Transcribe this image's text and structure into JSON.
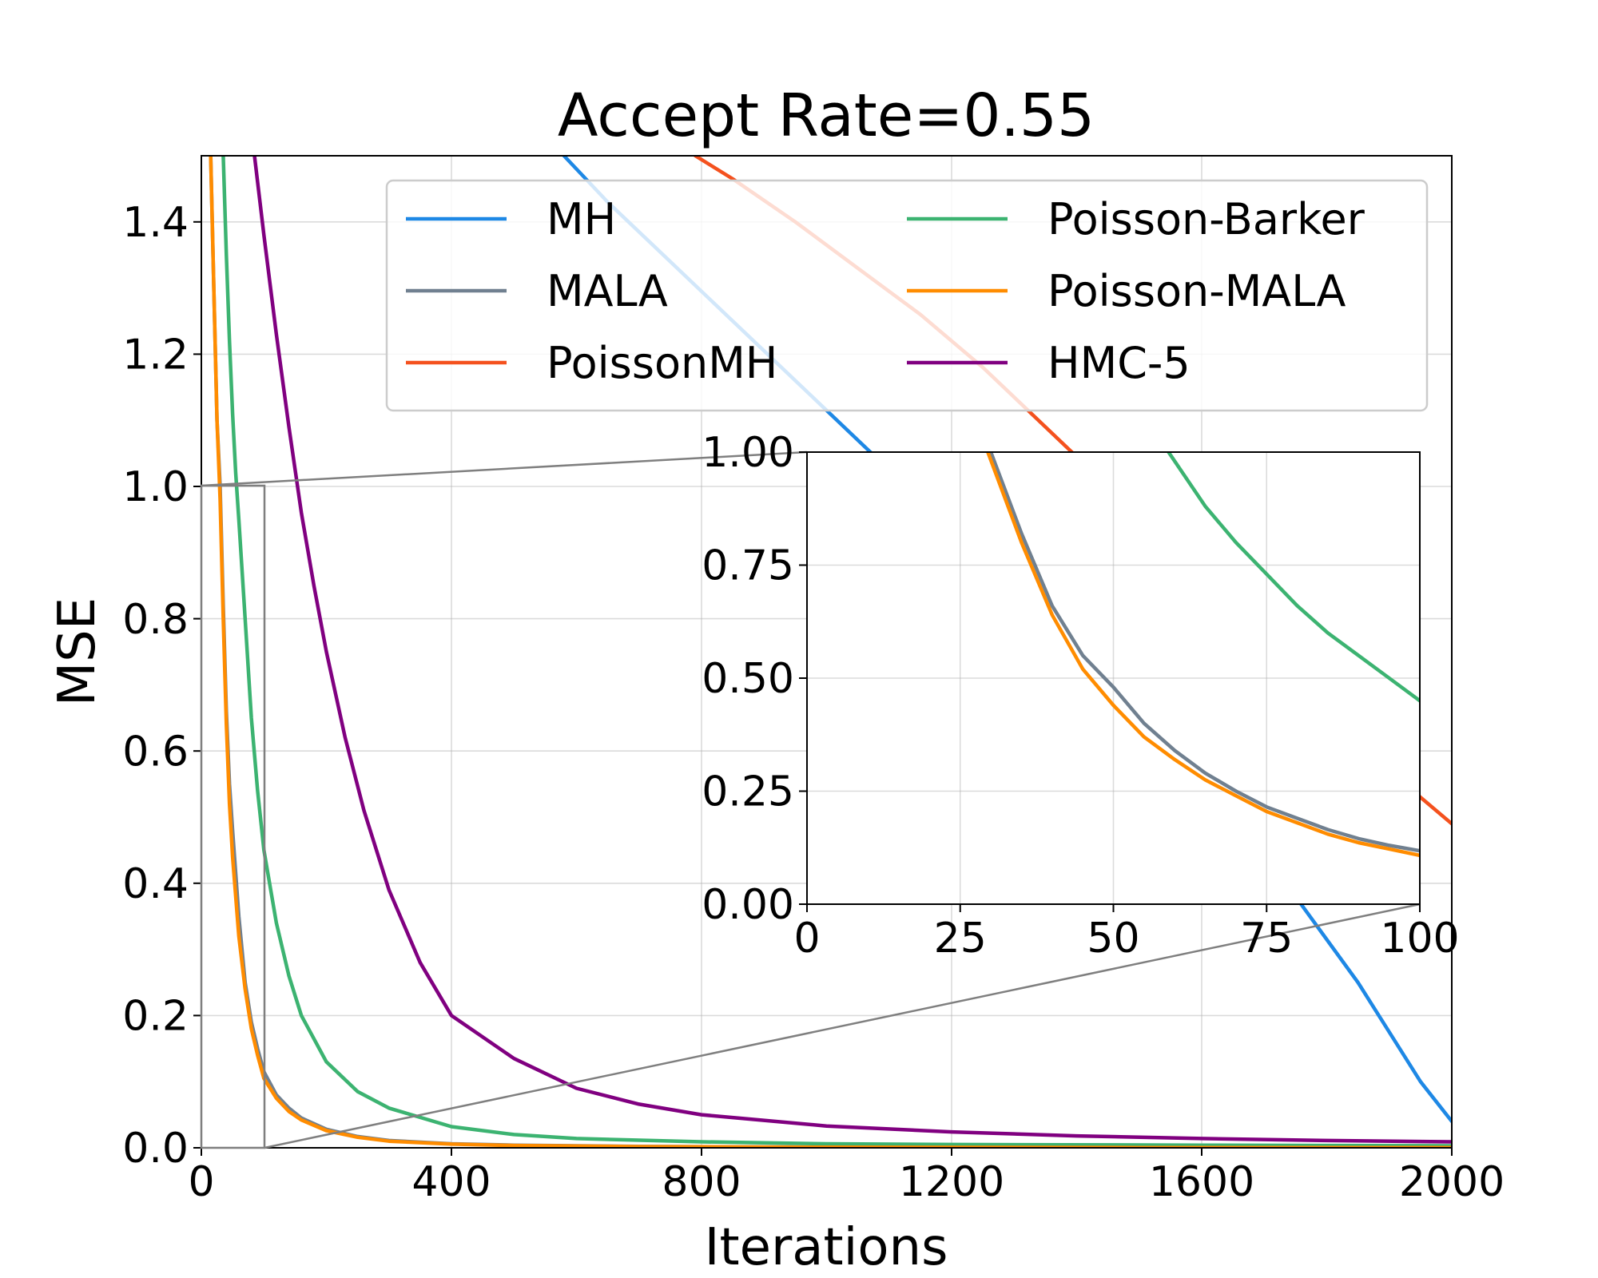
{
  "chart_data": [
    {
      "type": "line",
      "title": "Accept Rate=0.55",
      "xlabel": "Iterations",
      "ylabel": "MSE",
      "xlim": [
        0,
        2000
      ],
      "ylim": [
        0,
        1.5
      ],
      "xticks": [
        0,
        400,
        800,
        1200,
        1600,
        2000
      ],
      "xtick_labels": [
        "0",
        "400",
        "800",
        "1200",
        "1600",
        "2000"
      ],
      "yticks": [
        0.0,
        0.2,
        0.4,
        0.6,
        0.8,
        1.0,
        1.2,
        1.4
      ],
      "ytick_labels": [
        "0.0",
        "0.2",
        "0.4",
        "0.6",
        "0.8",
        "1.0",
        "1.2",
        "1.4"
      ],
      "grid": true,
      "legend_placement": "upper-right",
      "legend_columns": 2,
      "series": [
        {
          "name": "MH",
          "color": "#1e88e5",
          "x": [
            580,
            650,
            750,
            850,
            950,
            1050,
            1150,
            1250,
            1350,
            1450,
            1550,
            1650,
            1750,
            1850,
            1950,
            2000
          ],
          "y": [
            1.5,
            1.43,
            1.34,
            1.25,
            1.16,
            1.07,
            0.98,
            0.89,
            0.8,
            0.7,
            0.6,
            0.49,
            0.38,
            0.25,
            0.1,
            0.04
          ]
        },
        {
          "name": "MALA",
          "color": "#708090",
          "x": [
            15,
            20,
            25,
            30,
            35,
            40,
            45,
            50,
            60,
            70,
            80,
            90,
            100,
            120,
            140,
            160,
            200,
            250,
            300,
            400,
            500,
            700,
            1000,
            1500,
            2000
          ],
          "y": [
            1.5,
            1.3,
            1.1,
            1.0,
            0.82,
            0.66,
            0.55,
            0.48,
            0.35,
            0.25,
            0.19,
            0.15,
            0.115,
            0.08,
            0.06,
            0.045,
            0.028,
            0.017,
            0.011,
            0.006,
            0.004,
            0.002,
            0.001,
            0.0005,
            0.0003
          ]
        },
        {
          "name": "PoissonMH",
          "color": "#f4511e",
          "x": [
            790,
            850,
            950,
            1050,
            1150,
            1250,
            1350,
            1450,
            1550,
            1650,
            1750,
            1850,
            1950,
            2000
          ],
          "y": [
            1.5,
            1.465,
            1.4,
            1.33,
            1.26,
            1.18,
            1.09,
            1.0,
            0.9,
            0.8,
            0.7,
            0.61,
            0.53,
            0.49
          ]
        },
        {
          "name": "Poisson-Barker",
          "color": "#3cb371",
          "x": [
            35,
            40,
            45,
            50,
            55,
            60,
            70,
            80,
            90,
            100,
            120,
            140,
            160,
            200,
            250,
            300,
            400,
            500,
            600,
            800,
            1000,
            1200,
            1600,
            2000
          ],
          "y": [
            1.5,
            1.35,
            1.22,
            1.11,
            1.02,
            0.95,
            0.8,
            0.65,
            0.54,
            0.45,
            0.34,
            0.26,
            0.2,
            0.13,
            0.085,
            0.06,
            0.032,
            0.02,
            0.014,
            0.009,
            0.006,
            0.005,
            0.004,
            0.003
          ]
        },
        {
          "name": "Poisson-MALA",
          "color": "#ff8c00",
          "x": [
            15,
            20,
            25,
            30,
            35,
            40,
            45,
            50,
            60,
            70,
            80,
            90,
            100,
            120,
            140,
            160,
            200,
            250,
            300,
            400,
            500,
            700,
            1000,
            1500,
            2000
          ],
          "y": [
            1.5,
            1.3,
            1.1,
            0.98,
            0.8,
            0.64,
            0.52,
            0.44,
            0.32,
            0.24,
            0.18,
            0.14,
            0.105,
            0.075,
            0.055,
            0.042,
            0.026,
            0.016,
            0.01,
            0.0055,
            0.0035,
            0.0018,
            0.0009,
            0.0004,
            0.0002
          ]
        },
        {
          "name": "HMC-5",
          "color": "#800080",
          "x": [
            85,
            100,
            120,
            140,
            160,
            180,
            200,
            230,
            260,
            300,
            350,
            400,
            500,
            600,
            700,
            800,
            1000,
            1200,
            1400,
            1600,
            1800,
            2000
          ],
          "y": [
            1.5,
            1.38,
            1.23,
            1.09,
            0.96,
            0.85,
            0.75,
            0.62,
            0.51,
            0.39,
            0.28,
            0.2,
            0.135,
            0.09,
            0.066,
            0.05,
            0.033,
            0.024,
            0.018,
            0.014,
            0.011,
            0.009
          ]
        }
      ]
    },
    {
      "type": "line",
      "title": "",
      "placement": "inset (zoom of 0–100 iterations, MSE 0–1)",
      "xlim": [
        0,
        100
      ],
      "ylim": [
        0,
        1
      ],
      "xticks": [
        0,
        25,
        50,
        75,
        100
      ],
      "xtick_labels": [
        "0",
        "25",
        "50",
        "75",
        "100"
      ],
      "yticks": [
        0.0,
        0.25,
        0.5,
        0.75,
        1.0
      ],
      "ytick_labels": [
        "0.00",
        "0.25",
        "0.50",
        "0.75",
        "1.00"
      ],
      "grid": true,
      "series": [
        {
          "name": "MALA",
          "color": "#708090",
          "x": [
            30,
            35,
            40,
            45,
            50,
            55,
            60,
            65,
            70,
            75,
            80,
            85,
            90,
            95,
            100
          ],
          "y": [
            1.0,
            0.82,
            0.66,
            0.55,
            0.48,
            0.4,
            0.34,
            0.29,
            0.25,
            0.215,
            0.19,
            0.165,
            0.145,
            0.13,
            0.118
          ]
        },
        {
          "name": "Poisson-MALA",
          "color": "#ff8c00",
          "x": [
            29.5,
            35,
            40,
            45,
            50,
            55,
            60,
            65,
            70,
            75,
            80,
            85,
            90,
            95,
            100
          ],
          "y": [
            1.0,
            0.8,
            0.64,
            0.52,
            0.44,
            0.37,
            0.32,
            0.275,
            0.24,
            0.205,
            0.18,
            0.155,
            0.136,
            0.122,
            0.108
          ]
        },
        {
          "name": "Poisson-Barker",
          "color": "#3cb371",
          "x": [
            59,
            65,
            70,
            75,
            80,
            85,
            90,
            95,
            100
          ],
          "y": [
            1.0,
            0.88,
            0.8,
            0.73,
            0.66,
            0.6,
            0.55,
            0.5,
            0.45
          ]
        }
      ]
    }
  ]
}
